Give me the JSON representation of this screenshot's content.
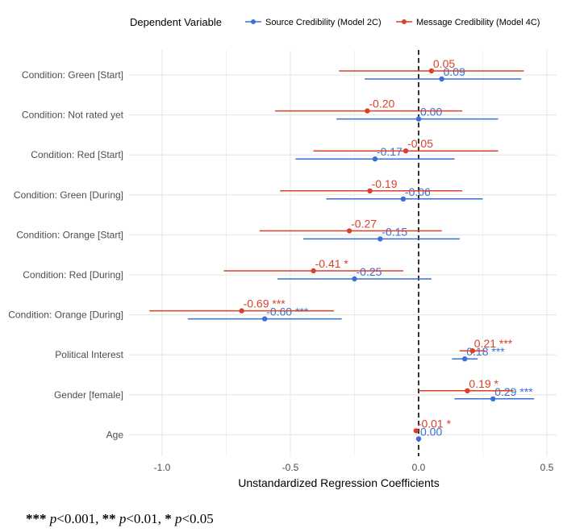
{
  "chart_data": {
    "type": "scatter",
    "subtype": "coefficient-plot",
    "title": "",
    "xlabel": "Unstandardized Regression Coefficients",
    "ylabel": "",
    "xlim": [
      -1.1,
      0.52
    ],
    "xticks": [
      -1.0,
      -0.5,
      0.0,
      0.5
    ],
    "xtick_labels": [
      "-1.0",
      "-0.5",
      "0.0",
      "0.5"
    ],
    "reference_line": {
      "x": 0,
      "style": "dashed"
    },
    "grid": true,
    "legend": {
      "title": "Dependent Variable",
      "position": "top"
    },
    "categories": [
      "Condition: Green [Start]",
      "Condition: Not rated yet",
      "Condition: Red [Start]",
      "Condition: Green [During]",
      "Condition: Orange [Start]",
      "Condition: Red [During]",
      "Condition: Orange [During]",
      "Political Interest",
      "Gender [female]",
      "Age"
    ],
    "series": [
      {
        "name": "Source Credibility (Model 2C)",
        "color": "#3b6fd4",
        "estimates": [
          0.09,
          0.0,
          -0.17,
          -0.06,
          -0.15,
          -0.25,
          -0.6,
          0.18,
          0.29,
          0.0
        ],
        "ci_low": [
          -0.21,
          -0.32,
          -0.48,
          -0.36,
          -0.45,
          -0.55,
          -0.9,
          0.13,
          0.14,
          -0.01
        ],
        "ci_high": [
          0.4,
          0.31,
          0.14,
          0.25,
          0.16,
          0.05,
          -0.3,
          0.23,
          0.45,
          0.01
        ],
        "labels": [
          "0.09",
          "0.00",
          "-0.17",
          "-0.06",
          "-0.15",
          "-0.25",
          "-0.60 ***",
          "0.18 ***",
          "0.29 ***",
          "0.00"
        ]
      },
      {
        "name": "Message Credibility (Model 4C)",
        "color": "#d9412b",
        "estimates": [
          0.05,
          -0.2,
          -0.05,
          -0.19,
          -0.27,
          -0.41,
          -0.69,
          0.21,
          0.19,
          -0.01
        ],
        "ci_low": [
          -0.31,
          -0.56,
          -0.41,
          -0.54,
          -0.62,
          -0.76,
          -1.05,
          0.16,
          0.0,
          -0.01
        ],
        "ci_high": [
          0.41,
          0.17,
          0.31,
          0.17,
          0.09,
          -0.06,
          -0.33,
          0.26,
          0.37,
          0.0
        ],
        "labels": [
          "0.05",
          "-0.20",
          "-0.05",
          "-0.19",
          "-0.27",
          "-0.41 *",
          "-0.69 ***",
          "0.21 ***",
          "0.19 *",
          "-0.01 *"
        ]
      }
    ]
  },
  "footnote": {
    "s3": "***",
    "p1": "p",
    "t1": "<0.001, ",
    "s2": "**",
    "p2": "p",
    "t2": "<0.01, ",
    "s1": "*",
    "p3": "p",
    "t3": "<0.05"
  }
}
